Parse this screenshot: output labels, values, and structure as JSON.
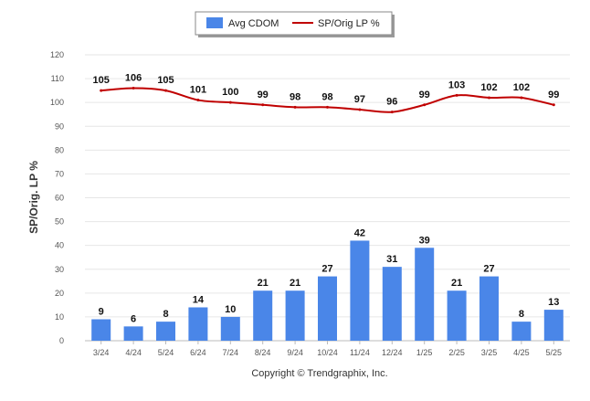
{
  "colors": {
    "bar": "#4a86e8",
    "line": "#c00000",
    "grid": "#e6e6e6",
    "axis": "#bbbbbb"
  },
  "legend": {
    "bar_label": "Avg CDOM",
    "line_label": "SP/Orig LP %"
  },
  "footer": {
    "copyright": "Copyright © Trendgraphix, Inc."
  },
  "chart_data": {
    "type": "bar",
    "title": "",
    "ylabel": "SP/Orig. LP %",
    "xlabel": "",
    "ylim": [
      0,
      120
    ],
    "yticks": [
      0,
      10,
      20,
      30,
      40,
      50,
      60,
      70,
      80,
      90,
      100,
      110,
      120
    ],
    "grid": true,
    "legend_position": "top-center",
    "categories": [
      "3/24",
      "4/24",
      "5/24",
      "6/24",
      "7/24",
      "8/24",
      "9/24",
      "10/24",
      "11/24",
      "12/24",
      "1/25",
      "2/25",
      "3/25",
      "4/25",
      "5/25"
    ],
    "series": [
      {
        "name": "Avg CDOM",
        "type": "bar",
        "values": [
          9,
          6,
          8,
          14,
          10,
          21,
          21,
          27,
          42,
          31,
          39,
          21,
          27,
          8,
          13
        ]
      },
      {
        "name": "SP/Orig LP %",
        "type": "line",
        "values": [
          105,
          106,
          105,
          101,
          100,
          99,
          98,
          98,
          97,
          96,
          99,
          103,
          102,
          102,
          99
        ]
      }
    ]
  }
}
